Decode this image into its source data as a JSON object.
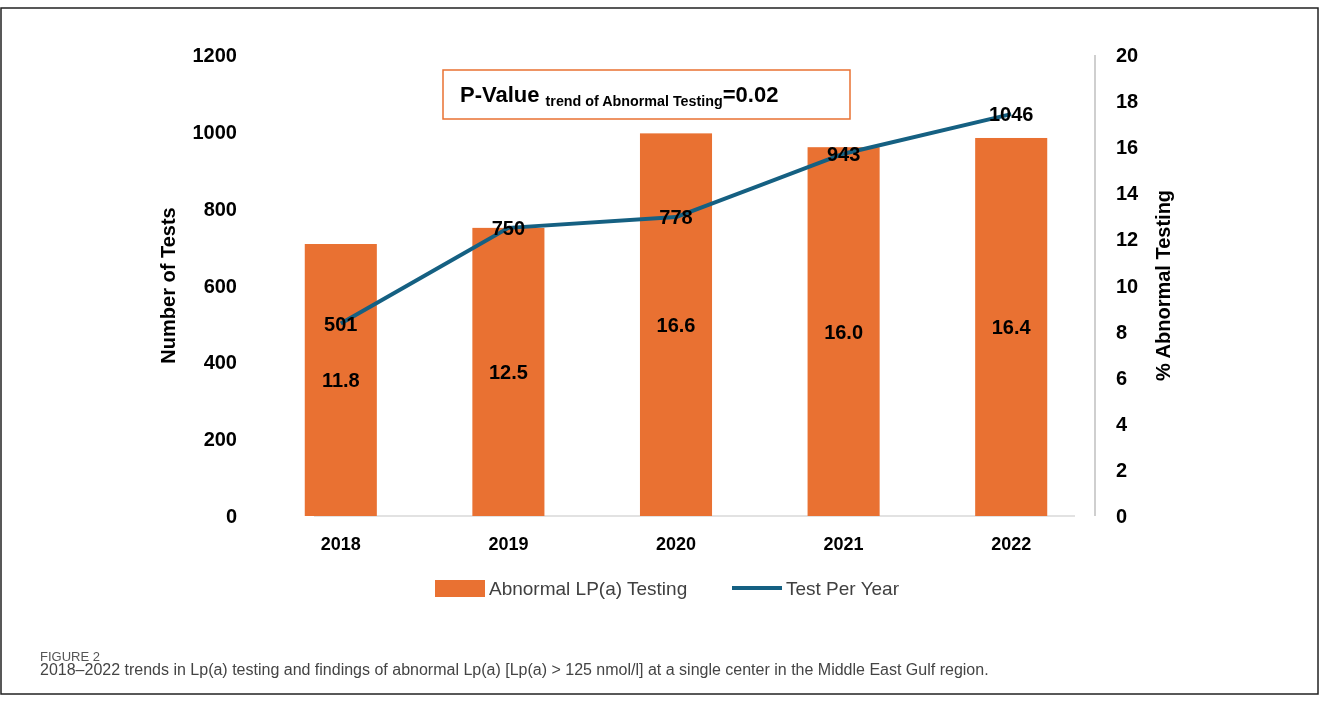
{
  "chart_data": {
    "type": "bar",
    "categories": [
      "2018",
      "2019",
      "2020",
      "2021",
      "2022"
    ],
    "series": [
      {
        "name": "Abnormal LP(a) Testing",
        "axis": "y2",
        "color": "#e97132",
        "values": [
          11.8,
          12.5,
          16.6,
          16.0,
          16.4
        ],
        "value_labels": [
          "11.8",
          "12.5",
          "16.6",
          "16.0",
          "16.4"
        ]
      },
      {
        "name": "Test Per Year",
        "type": "line",
        "color": "#156082",
        "values": [
          501,
          750,
          778,
          943,
          1046
        ],
        "value_labels": [
          "501",
          "750",
          "778",
          "943",
          "1046"
        ]
      }
    ],
    "ylabel": "Number of Tests",
    "y2label": "% Abnormal Testing",
    "ylim": [
      0,
      1200
    ],
    "yticks": [
      0,
      200,
      400,
      600,
      800,
      1000,
      1200
    ],
    "y2lim": [
      0,
      20
    ],
    "y2ticks": [
      0,
      2,
      4,
      6,
      8,
      10,
      12,
      14,
      16,
      18,
      20
    ],
    "legend": "bottom",
    "marker": "none",
    "line_style": "solid",
    "annotations": [
      "P-Value $_{trend of Abnormal Testing}$=0.02",
      "FIGURE 2",
      "2018–2022 trends in Lp(a) testing and findings of abnormal Lp(a) [Lp(a) > 125 nmol/l] at a single center in the Middle East Gulf region."
    ]
  }
}
